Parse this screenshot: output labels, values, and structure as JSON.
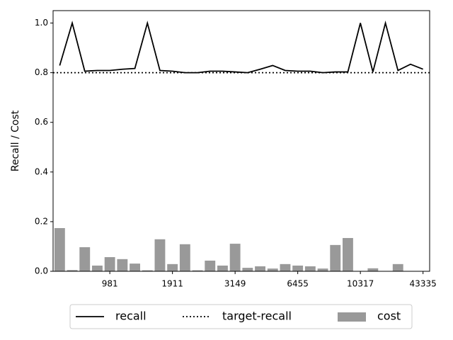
{
  "chart_data": {
    "type": "combo",
    "ylabel": "Recall / Cost",
    "categories": [
      null,
      null,
      null,
      null,
      "981",
      null,
      null,
      null,
      null,
      "1911",
      null,
      null,
      null,
      null,
      "3149",
      null,
      null,
      null,
      null,
      "6455",
      null,
      null,
      null,
      null,
      "10317",
      null,
      null,
      null,
      null,
      "43335"
    ],
    "series": [
      {
        "name": "recall",
        "type": "line",
        "color": "#000000",
        "style": "solid",
        "values": [
          0.829,
          1.0,
          0.806,
          0.809,
          0.809,
          0.814,
          0.817,
          1.0,
          0.809,
          0.806,
          0.8,
          0.8,
          0.806,
          0.806,
          0.803,
          0.8,
          0.814,
          0.829,
          0.809,
          0.806,
          0.806,
          0.8,
          0.803,
          0.803,
          1.0,
          0.803,
          1.0,
          0.809,
          0.834,
          0.814
        ]
      },
      {
        "name": "target-recall",
        "type": "hline",
        "color": "#000000",
        "style": "dotted",
        "value": 0.8
      },
      {
        "name": "cost",
        "type": "bar",
        "color": "#999999",
        "values": [
          0.174,
          0.005,
          0.097,
          0.023,
          0.057,
          0.049,
          0.031,
          0.004,
          0.129,
          0.029,
          0.109,
          0.004,
          0.043,
          0.023,
          0.111,
          0.014,
          0.02,
          0.011,
          0.029,
          0.023,
          0.02,
          0.011,
          0.106,
          0.134,
          0.0,
          0.012,
          0.0,
          0.029,
          0.0,
          0.0
        ]
      }
    ],
    "ylim": [
      0,
      1.05
    ],
    "yticks": [
      {
        "value": 0,
        "label": "0.0"
      },
      0.2,
      0.4,
      0.6,
      0.8,
      {
        "value": 1,
        "label": "1.0"
      }
    ],
    "legend": "bottom"
  }
}
